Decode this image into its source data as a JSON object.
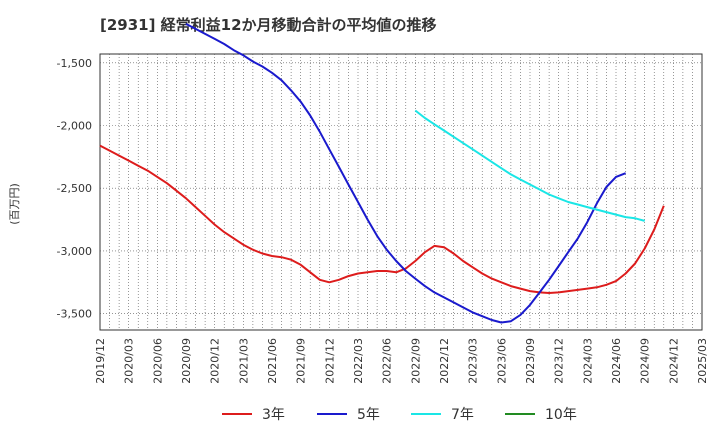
{
  "chart_data": {
    "type": "line",
    "title": "[2931]  経常利益12か月移動合計の平均値の推移",
    "ylabel": "(百万円)",
    "xlabel": "",
    "ylim": [
      -3630,
      -1430
    ],
    "xlim": [
      "2019/12",
      "2025/03"
    ],
    "yticks": [
      -1500,
      -2000,
      -2500,
      -3000,
      -3500
    ],
    "ytick_labels": [
      "-1,500",
      "-2,000",
      "-2,500",
      "-3,000",
      "-3,500"
    ],
    "xtick_labels": [
      "2019/12",
      "2020/03",
      "2020/06",
      "2020/09",
      "2020/12",
      "2021/03",
      "2021/06",
      "2021/09",
      "2021/12",
      "2022/03",
      "2022/06",
      "2022/09",
      "2022/12",
      "2023/03",
      "2023/06",
      "2023/09",
      "2023/12",
      "2024/03",
      "2024/06",
      "2024/09",
      "2024/12",
      "2025/03"
    ],
    "grid": true,
    "legend_position": "bottom",
    "series": [
      {
        "name": "3年",
        "color": "#dd1c1c",
        "points": [
          [
            0,
            -2160
          ],
          [
            1,
            -2200
          ],
          [
            2,
            -2240
          ],
          [
            3,
            -2280
          ],
          [
            4,
            -2320
          ],
          [
            5,
            -2360
          ],
          [
            6,
            -2410
          ],
          [
            7,
            -2460
          ],
          [
            8,
            -2520
          ],
          [
            9,
            -2580
          ],
          [
            10,
            -2650
          ],
          [
            11,
            -2720
          ],
          [
            12,
            -2790
          ],
          [
            13,
            -2850
          ],
          [
            14,
            -2900
          ],
          [
            15,
            -2950
          ],
          [
            16,
            -2990
          ],
          [
            17,
            -3020
          ],
          [
            18,
            -3040
          ],
          [
            19,
            -3050
          ],
          [
            20,
            -3070
          ],
          [
            21,
            -3110
          ],
          [
            22,
            -3170
          ],
          [
            23,
            -3230
          ],
          [
            24,
            -3250
          ],
          [
            25,
            -3230
          ],
          [
            26,
            -3200
          ],
          [
            27,
            -3180
          ],
          [
            28,
            -3170
          ],
          [
            29,
            -3160
          ],
          [
            30,
            -3160
          ],
          [
            31,
            -3170
          ],
          [
            32,
            -3140
          ],
          [
            33,
            -3080
          ],
          [
            34,
            -3010
          ],
          [
            35,
            -2960
          ],
          [
            36,
            -2970
          ],
          [
            37,
            -3020
          ],
          [
            38,
            -3080
          ],
          [
            39,
            -3130
          ],
          [
            40,
            -3180
          ],
          [
            41,
            -3220
          ],
          [
            42,
            -3250
          ],
          [
            43,
            -3280
          ],
          [
            44,
            -3300
          ],
          [
            45,
            -3320
          ],
          [
            46,
            -3330
          ],
          [
            47,
            -3335
          ],
          [
            48,
            -3330
          ],
          [
            49,
            -3320
          ],
          [
            50,
            -3310
          ],
          [
            51,
            -3300
          ],
          [
            52,
            -3290
          ],
          [
            53,
            -3270
          ],
          [
            54,
            -3240
          ],
          [
            55,
            -3180
          ],
          [
            56,
            -3100
          ],
          [
            57,
            -2980
          ],
          [
            58,
            -2830
          ],
          [
            59,
            -2640
          ]
        ]
      },
      {
        "name": "5年",
        "color": "#1a1acd",
        "points": [
          [
            9,
            -1190
          ],
          [
            10,
            -1230
          ],
          [
            11,
            -1270
          ],
          [
            12,
            -1310
          ],
          [
            13,
            -1350
          ],
          [
            14,
            -1400
          ],
          [
            15,
            -1440
          ],
          [
            16,
            -1490
          ],
          [
            17,
            -1530
          ],
          [
            18,
            -1580
          ],
          [
            19,
            -1640
          ],
          [
            20,
            -1720
          ],
          [
            21,
            -1810
          ],
          [
            22,
            -1920
          ],
          [
            23,
            -2050
          ],
          [
            24,
            -2190
          ],
          [
            25,
            -2330
          ],
          [
            26,
            -2470
          ],
          [
            27,
            -2610
          ],
          [
            28,
            -2750
          ],
          [
            29,
            -2880
          ],
          [
            30,
            -2990
          ],
          [
            31,
            -3080
          ],
          [
            32,
            -3160
          ],
          [
            33,
            -3220
          ],
          [
            34,
            -3280
          ],
          [
            35,
            -3330
          ],
          [
            36,
            -3370
          ],
          [
            37,
            -3410
          ],
          [
            38,
            -3450
          ],
          [
            39,
            -3490
          ],
          [
            40,
            -3520
          ],
          [
            41,
            -3550
          ],
          [
            42,
            -3570
          ],
          [
            43,
            -3560
          ],
          [
            44,
            -3510
          ],
          [
            45,
            -3430
          ],
          [
            46,
            -3330
          ],
          [
            47,
            -3230
          ],
          [
            48,
            -3120
          ],
          [
            49,
            -3010
          ],
          [
            50,
            -2900
          ],
          [
            51,
            -2770
          ],
          [
            52,
            -2620
          ],
          [
            53,
            -2490
          ],
          [
            54,
            -2410
          ],
          [
            55,
            -2380
          ]
        ]
      },
      {
        "name": "7年",
        "color": "#1ae6e6",
        "points": [
          [
            33,
            -1880
          ],
          [
            34,
            -1940
          ],
          [
            35,
            -1990
          ],
          [
            36,
            -2040
          ],
          [
            37,
            -2090
          ],
          [
            38,
            -2140
          ],
          [
            39,
            -2190
          ],
          [
            40,
            -2240
          ],
          [
            41,
            -2290
          ],
          [
            42,
            -2340
          ],
          [
            43,
            -2390
          ],
          [
            44,
            -2430
          ],
          [
            45,
            -2470
          ],
          [
            46,
            -2510
          ],
          [
            47,
            -2550
          ],
          [
            48,
            -2580
          ],
          [
            49,
            -2610
          ],
          [
            50,
            -2630
          ],
          [
            51,
            -2650
          ],
          [
            52,
            -2670
          ],
          [
            53,
            -2690
          ],
          [
            54,
            -2710
          ],
          [
            55,
            -2730
          ],
          [
            56,
            -2740
          ],
          [
            57,
            -2760
          ]
        ]
      },
      {
        "name": "10年",
        "color": "#228b22",
        "points": []
      }
    ]
  }
}
